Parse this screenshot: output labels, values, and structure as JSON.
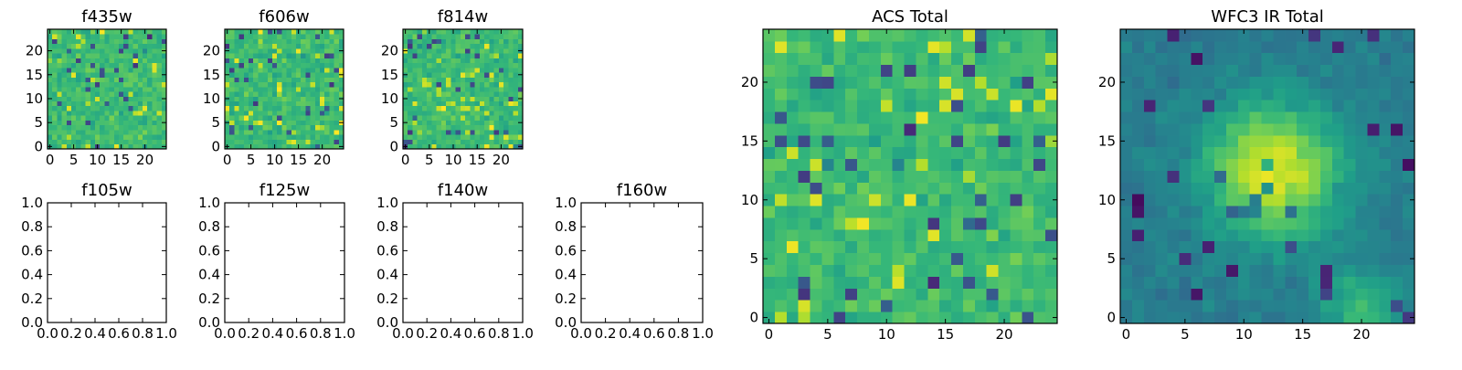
{
  "colors": {
    "frame": "#000000",
    "background": "#ffffff",
    "colormap": "viridis"
  },
  "chart_data": [
    {
      "type": "heatmap",
      "title": "f435w",
      "image": "noise",
      "seed": 11,
      "xticks": [
        "0",
        "5",
        "10",
        "15",
        "20"
      ],
      "yticks": [
        "0",
        "5",
        "10",
        "15",
        "20"
      ],
      "xlim": [
        -0.5,
        24.5
      ],
      "ylim": [
        -0.5,
        24.5
      ]
    },
    {
      "type": "heatmap",
      "title": "f606w",
      "image": "noise",
      "seed": 23,
      "xticks": [
        "0",
        "5",
        "10",
        "15",
        "20"
      ],
      "yticks": [
        "0",
        "5",
        "10",
        "15",
        "20"
      ],
      "xlim": [
        -0.5,
        24.5
      ],
      "ylim": [
        -0.5,
        24.5
      ]
    },
    {
      "type": "heatmap",
      "title": "f814w",
      "image": "noise",
      "seed": 37,
      "xticks": [
        "0",
        "5",
        "10",
        "15",
        "20"
      ],
      "yticks": [
        "0",
        "5",
        "10",
        "15",
        "20"
      ],
      "xlim": [
        -0.5,
        24.5
      ],
      "ylim": [
        -0.5,
        24.5
      ]
    },
    {
      "type": "heatmap",
      "title": "f105w",
      "image": "empty",
      "xticks": [
        "0.0",
        "0.2",
        "0.4",
        "0.6",
        "0.8",
        "1.0"
      ],
      "yticks": [
        "0.0",
        "0.2",
        "0.4",
        "0.6",
        "0.8",
        "1.0"
      ],
      "xlim": [
        0,
        1
      ],
      "ylim": [
        0,
        1
      ]
    },
    {
      "type": "heatmap",
      "title": "f125w",
      "image": "empty",
      "xticks": [
        "0.0",
        "0.2",
        "0.4",
        "0.6",
        "0.8",
        "1.0"
      ],
      "yticks": [
        "0.0",
        "0.2",
        "0.4",
        "0.6",
        "0.8",
        "1.0"
      ],
      "xlim": [
        0,
        1
      ],
      "ylim": [
        0,
        1
      ]
    },
    {
      "type": "heatmap",
      "title": "f140w",
      "image": "empty",
      "xticks": [
        "0.0",
        "0.2",
        "0.4",
        "0.6",
        "0.8",
        "1.0"
      ],
      "yticks": [
        "0.0",
        "0.2",
        "0.4",
        "0.6",
        "0.8",
        "1.0"
      ],
      "xlim": [
        0,
        1
      ],
      "ylim": [
        0,
        1
      ]
    },
    {
      "type": "heatmap",
      "title": "f160w",
      "image": "empty",
      "xticks": [
        "0.0",
        "0.2",
        "0.4",
        "0.6",
        "0.8",
        "1.0"
      ],
      "yticks": [
        "0.0",
        "0.2",
        "0.4",
        "0.6",
        "0.8",
        "1.0"
      ],
      "xlim": [
        0,
        1
      ],
      "ylim": [
        0,
        1
      ]
    },
    {
      "type": "heatmap",
      "title": "ACS Total",
      "image": "noise",
      "seed": 53,
      "xticks": [
        "0",
        "5",
        "10",
        "15",
        "20"
      ],
      "yticks": [
        "0",
        "5",
        "10",
        "15",
        "20"
      ],
      "xlim": [
        -0.5,
        24.5
      ],
      "ylim": [
        -0.5,
        24.5
      ]
    },
    {
      "type": "heatmap",
      "title": "WFC3 IR Total",
      "image": "blob",
      "seed": 71,
      "blob_center": [
        12.5,
        12.5
      ],
      "xticks": [
        "0",
        "5",
        "10",
        "15",
        "20"
      ],
      "yticks": [
        "0",
        "5",
        "10",
        "15",
        "20"
      ],
      "xlim": [
        -0.5,
        24.5
      ],
      "ylim": [
        -0.5,
        24.5
      ]
    }
  ]
}
